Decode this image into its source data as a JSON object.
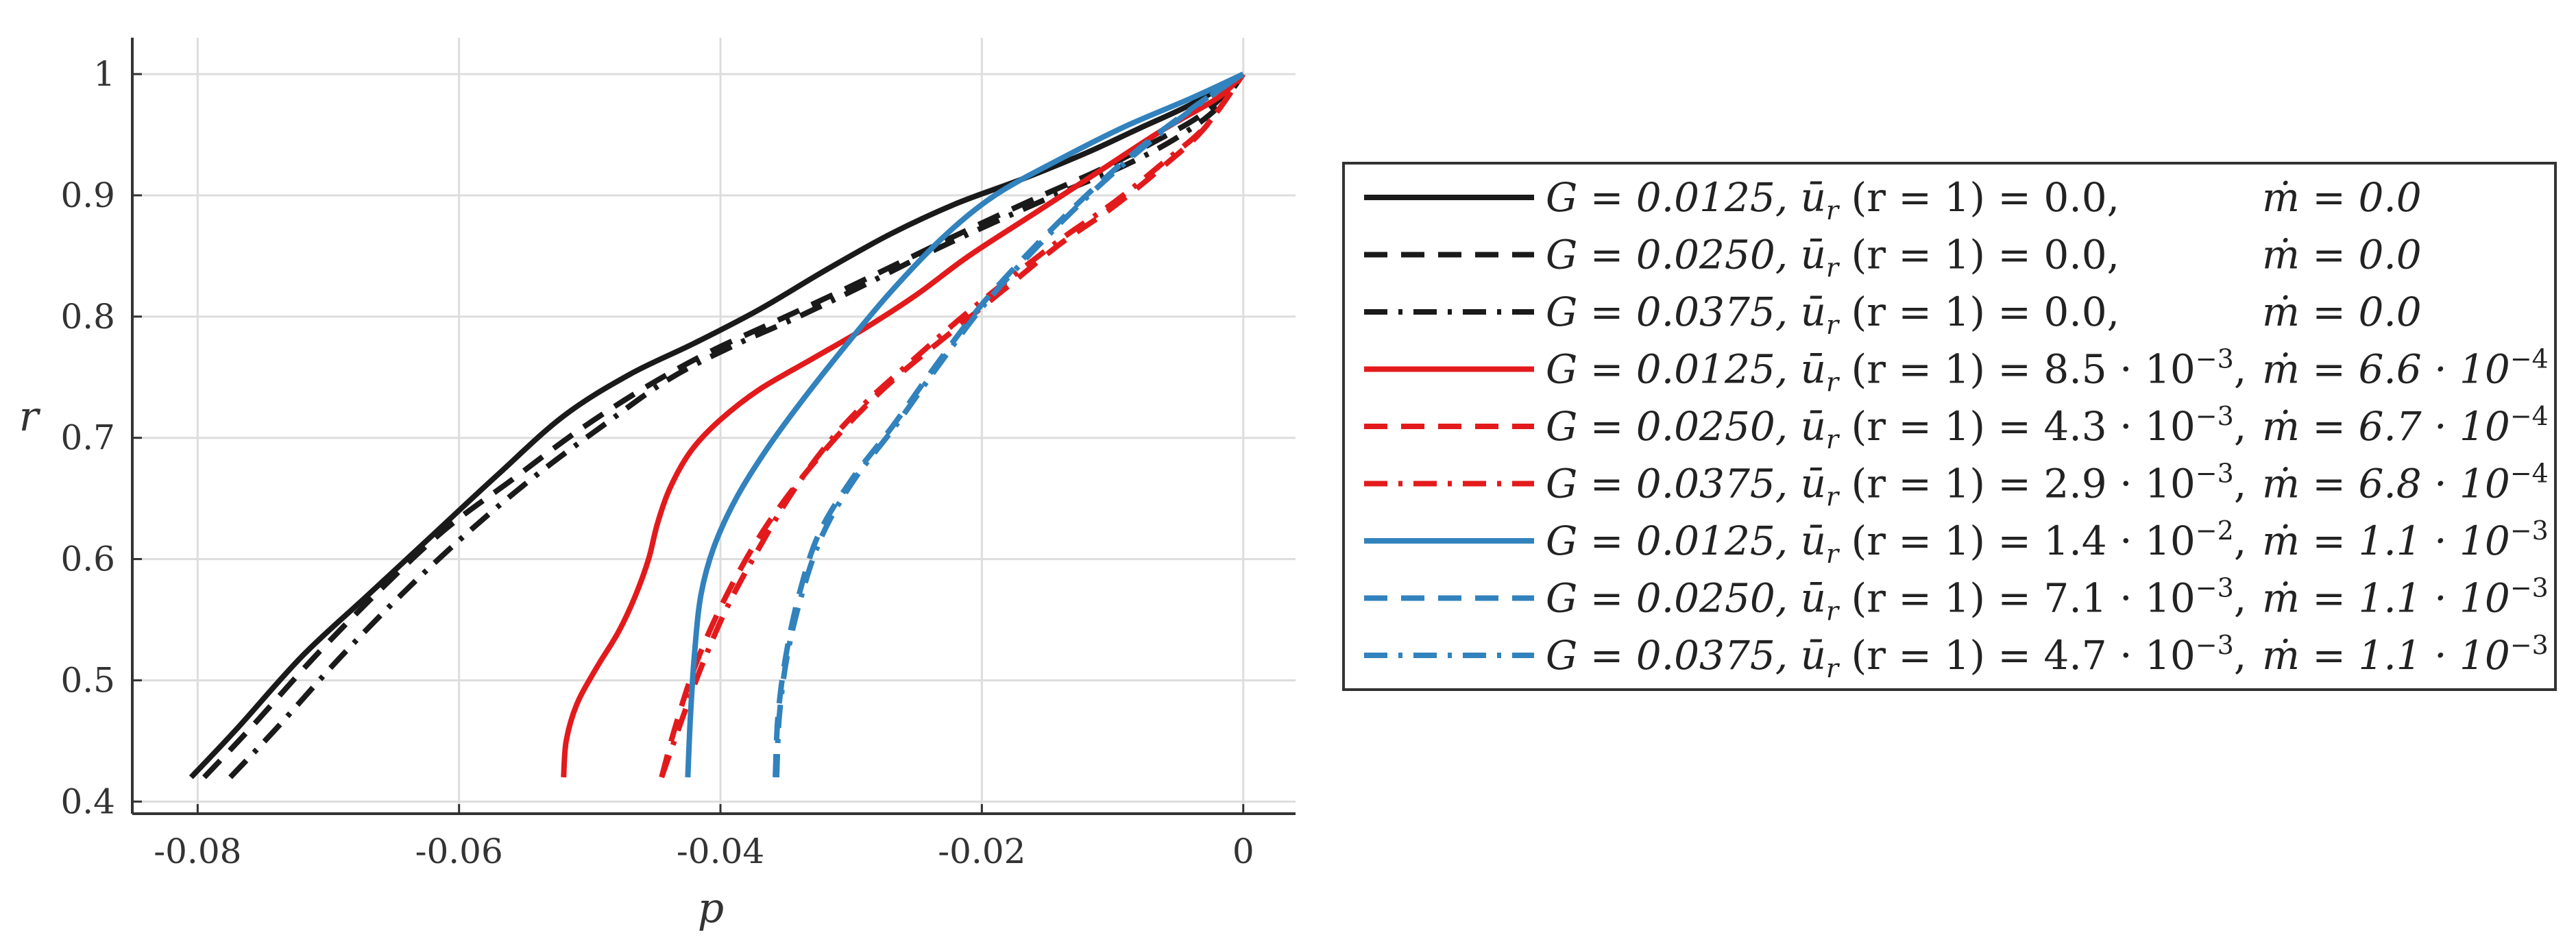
{
  "chart_data": {
    "type": "line",
    "title": "",
    "xlabel": "p",
    "ylabel": "r",
    "xlim": [
      -0.085,
      0.004
    ],
    "ylim": [
      0.39,
      1.03
    ],
    "grid": true,
    "xticks": [
      -0.08,
      -0.06,
      -0.04,
      -0.02,
      0
    ],
    "xtick_labels": [
      "-0.08",
      "-0.06",
      "-0.04",
      "-0.02",
      "0"
    ],
    "yticks": [
      0.4,
      0.5,
      0.6,
      0.7,
      0.8,
      0.9,
      1.0
    ],
    "ytick_labels": [
      "0.4",
      "0.5",
      "0.6",
      "0.7",
      "0.8",
      "0.9",
      "1"
    ],
    "legend_position": "right",
    "series": [
      {
        "name": "G = 0.0125, ū_r (r = 1) = 0.0, ṁ = 0.0",
        "label_g": "G = 0.0125,",
        "label_u": "ū",
        "label_u_sub": "r",
        "label_u_rest": "(r = 1) = 0.0,",
        "label_u_exp": "",
        "label_m": "ṁ = 0.0",
        "label_m_exp": "",
        "color": "#1a1a1a",
        "dash": "solid",
        "points": [
          [
            -0.0805,
            0.42
          ],
          [
            -0.077,
            0.46
          ],
          [
            -0.072,
            0.52
          ],
          [
            -0.067,
            0.57
          ],
          [
            -0.062,
            0.62
          ],
          [
            -0.057,
            0.67
          ],
          [
            -0.052,
            0.718
          ],
          [
            -0.047,
            0.752
          ],
          [
            -0.042,
            0.778
          ],
          [
            -0.037,
            0.806
          ],
          [
            -0.032,
            0.838
          ],
          [
            -0.027,
            0.868
          ],
          [
            -0.022,
            0.893
          ],
          [
            -0.017,
            0.913
          ],
          [
            -0.012,
            0.935
          ],
          [
            -0.008,
            0.955
          ],
          [
            -0.004,
            0.975
          ],
          [
            0,
            1.0
          ]
        ]
      },
      {
        "name": "G = 0.0250, ū_r (r = 1) = 0.0, ṁ = 0.0",
        "label_g": "G = 0.0250,",
        "label_u": "ū",
        "label_u_sub": "r",
        "label_u_rest": "(r = 1) = 0.0,",
        "label_u_exp": "",
        "label_m": "ṁ = 0.0",
        "label_m_exp": "",
        "color": "#1a1a1a",
        "dash": "dashed",
        "points": [
          [
            -0.0795,
            0.42
          ],
          [
            -0.076,
            0.46
          ],
          [
            -0.071,
            0.52
          ],
          [
            -0.066,
            0.575
          ],
          [
            -0.061,
            0.625
          ],
          [
            -0.056,
            0.665
          ],
          [
            -0.051,
            0.705
          ],
          [
            -0.046,
            0.74
          ],
          [
            -0.041,
            0.77
          ],
          [
            -0.036,
            0.795
          ],
          [
            -0.031,
            0.82
          ],
          [
            -0.026,
            0.846
          ],
          [
            -0.021,
            0.872
          ],
          [
            -0.016,
            0.897
          ],
          [
            -0.011,
            0.921
          ],
          [
            -0.007,
            0.943
          ],
          [
            -0.003,
            0.968
          ],
          [
            0,
            1.0
          ]
        ]
      },
      {
        "name": "G = 0.0375, ū_r (r = 1) = 0.0, ṁ = 0.0",
        "label_g": "G = 0.0375,",
        "label_u": "ū",
        "label_u_sub": "r",
        "label_u_rest": "(r = 1) = 0.0,",
        "label_u_exp": "",
        "label_m": "ṁ = 0.0",
        "label_m_exp": "",
        "color": "#1a1a1a",
        "dash": "dashdot",
        "points": [
          [
            -0.0775,
            0.42
          ],
          [
            -0.074,
            0.46
          ],
          [
            -0.069,
            0.52
          ],
          [
            -0.064,
            0.575
          ],
          [
            -0.059,
            0.625
          ],
          [
            -0.054,
            0.67
          ],
          [
            -0.049,
            0.71
          ],
          [
            -0.044,
            0.748
          ],
          [
            -0.039,
            0.776
          ],
          [
            -0.034,
            0.8
          ],
          [
            -0.029,
            0.826
          ],
          [
            -0.024,
            0.853
          ],
          [
            -0.019,
            0.878
          ],
          [
            -0.014,
            0.902
          ],
          [
            -0.009,
            0.925
          ],
          [
            -0.005,
            0.948
          ],
          [
            -0.002,
            0.972
          ],
          [
            0,
            1.0
          ]
        ]
      },
      {
        "name": "G = 0.0125, ū_r (r = 1) = 8.5·10^-3, ṁ = 6.6·10^-4",
        "label_g": "G = 0.0125,",
        "label_u": "ū",
        "label_u_sub": "r",
        "label_u_rest": "(r = 1) = 8.5 · 10",
        "label_u_exp": "−3",
        "label_m": "ṁ = 6.6 · 10",
        "label_m_exp": "−4",
        "color": "#e31a1c",
        "dash": "solid",
        "points": [
          [
            -0.052,
            0.42
          ],
          [
            -0.0518,
            0.45
          ],
          [
            -0.051,
            0.48
          ],
          [
            -0.0495,
            0.51
          ],
          [
            -0.0478,
            0.54
          ],
          [
            -0.0465,
            0.57
          ],
          [
            -0.0455,
            0.6
          ],
          [
            -0.0448,
            0.63
          ],
          [
            -0.0438,
            0.66
          ],
          [
            -0.0422,
            0.69
          ],
          [
            -0.04,
            0.715
          ],
          [
            -0.037,
            0.74
          ],
          [
            -0.033,
            0.765
          ],
          [
            -0.029,
            0.79
          ],
          [
            -0.025,
            0.818
          ],
          [
            -0.021,
            0.85
          ],
          [
            -0.016,
            0.885
          ],
          [
            -0.011,
            0.92
          ],
          [
            -0.006,
            0.955
          ],
          [
            -0.002,
            0.98
          ],
          [
            0,
            1.0
          ]
        ]
      },
      {
        "name": "G = 0.0250, ū_r (r = 1) = 4.3·10^-3, ṁ = 6.7·10^-4",
        "label_g": "G = 0.0250,",
        "label_u": "ū",
        "label_u_sub": "r",
        "label_u_rest": "(r = 1) = 4.3 · 10",
        "label_u_exp": "−3",
        "label_m": "ṁ = 6.7 · 10",
        "label_m_exp": "−4",
        "color": "#e31a1c",
        "dash": "dashed",
        "points": [
          [
            -0.0445,
            0.42
          ],
          [
            -0.0435,
            0.46
          ],
          [
            -0.042,
            0.51
          ],
          [
            -0.04,
            0.56
          ],
          [
            -0.0375,
            0.61
          ],
          [
            -0.035,
            0.65
          ],
          [
            -0.032,
            0.69
          ],
          [
            -0.029,
            0.725
          ],
          [
            -0.026,
            0.755
          ],
          [
            -0.022,
            0.79
          ],
          [
            -0.018,
            0.825
          ],
          [
            -0.014,
            0.86
          ],
          [
            -0.01,
            0.89
          ],
          [
            -0.006,
            0.925
          ],
          [
            -0.003,
            0.955
          ],
          [
            0,
            1.0
          ]
        ]
      },
      {
        "name": "G = 0.0375, ū_r (r = 1) = 2.9·10^-3, ṁ = 6.8·10^-4",
        "label_g": "G = 0.0375,",
        "label_u": "ū",
        "label_u_sub": "r",
        "label_u_rest": "(r = 1) = 2.9 · 10",
        "label_u_exp": "−3",
        "label_m": "ṁ = 6.8 · 10",
        "label_m_exp": "−4",
        "color": "#e31a1c",
        "dash": "dashdot",
        "points": [
          [
            -0.0445,
            0.42
          ],
          [
            -0.0432,
            0.46
          ],
          [
            -0.0415,
            0.51
          ],
          [
            -0.0395,
            0.56
          ],
          [
            -0.037,
            0.61
          ],
          [
            -0.0345,
            0.655
          ],
          [
            -0.0318,
            0.695
          ],
          [
            -0.0288,
            0.73
          ],
          [
            -0.0255,
            0.762
          ],
          [
            -0.0218,
            0.797
          ],
          [
            -0.0178,
            0.832
          ],
          [
            -0.0138,
            0.865
          ],
          [
            -0.0098,
            0.895
          ],
          [
            -0.006,
            0.928
          ],
          [
            -0.0028,
            0.958
          ],
          [
            0,
            1.0
          ]
        ]
      },
      {
        "name": "G = 0.0125, ū_r (r = 1) = 1.4·10^-2, ṁ = 1.1·10^-3",
        "label_g": "G = 0.0125,",
        "label_u": "ū",
        "label_u_sub": "r",
        "label_u_rest": "(r = 1) = 1.4 · 10",
        "label_u_exp": "−2",
        "label_m": "ṁ = 1.1 · 10",
        "label_m_exp": "−3",
        "color": "#3182bd",
        "dash": "solid",
        "points": [
          [
            -0.0425,
            0.42
          ],
          [
            -0.0423,
            0.47
          ],
          [
            -0.042,
            0.52
          ],
          [
            -0.0415,
            0.57
          ],
          [
            -0.0405,
            0.61
          ],
          [
            -0.0388,
            0.65
          ],
          [
            -0.0365,
            0.69
          ],
          [
            -0.0338,
            0.73
          ],
          [
            -0.0305,
            0.775
          ],
          [
            -0.027,
            0.82
          ],
          [
            -0.023,
            0.865
          ],
          [
            -0.019,
            0.9
          ],
          [
            -0.014,
            0.93
          ],
          [
            -0.009,
            0.957
          ],
          [
            -0.004,
            0.98
          ],
          [
            0,
            1.0
          ]
        ]
      },
      {
        "name": "G = 0.0250, ū_r (r = 1) = 7.1·10^-3, ṁ = 1.1·10^-3",
        "label_g": "G = 0.0250,",
        "label_u": "ū",
        "label_u_sub": "r",
        "label_u_rest": "(r = 1) = 7.1 · 10",
        "label_u_exp": "−3",
        "label_m": "ṁ = 1.1 · 10",
        "label_m_exp": "−3",
        "color": "#3182bd",
        "dash": "dashed",
        "points": [
          [
            -0.0358,
            0.42
          ],
          [
            -0.0356,
            0.47
          ],
          [
            -0.035,
            0.52
          ],
          [
            -0.034,
            0.57
          ],
          [
            -0.0325,
            0.62
          ],
          [
            -0.03,
            0.665
          ],
          [
            -0.0268,
            0.71
          ],
          [
            -0.0235,
            0.76
          ],
          [
            -0.02,
            0.81
          ],
          [
            -0.0162,
            0.855
          ],
          [
            -0.012,
            0.9
          ],
          [
            -0.0078,
            0.94
          ],
          [
            -0.0035,
            0.975
          ],
          [
            0,
            1.0
          ]
        ]
      },
      {
        "name": "G = 0.0375, ū_r (r = 1) = 4.7·10^-3, ṁ = 1.1·10^-3",
        "label_g": "G = 0.0375,",
        "label_u": "ū",
        "label_u_sub": "r",
        "label_u_rest": "(r = 1) = 4.7 · 10",
        "label_u_exp": "−3",
        "label_m": "ṁ = 1.1 · 10",
        "label_m_exp": "−3",
        "color": "#3182bd",
        "dash": "dashdot",
        "points": [
          [
            -0.0357,
            0.42
          ],
          [
            -0.0355,
            0.47
          ],
          [
            -0.0349,
            0.52
          ],
          [
            -0.0338,
            0.57
          ],
          [
            -0.0322,
            0.62
          ],
          [
            -0.0298,
            0.665
          ],
          [
            -0.0266,
            0.71
          ],
          [
            -0.0233,
            0.76
          ],
          [
            -0.0198,
            0.81
          ],
          [
            -0.016,
            0.855
          ],
          [
            -0.0118,
            0.9
          ],
          [
            -0.0076,
            0.94
          ],
          [
            -0.0034,
            0.975
          ],
          [
            0,
            1.0
          ]
        ]
      }
    ]
  }
}
